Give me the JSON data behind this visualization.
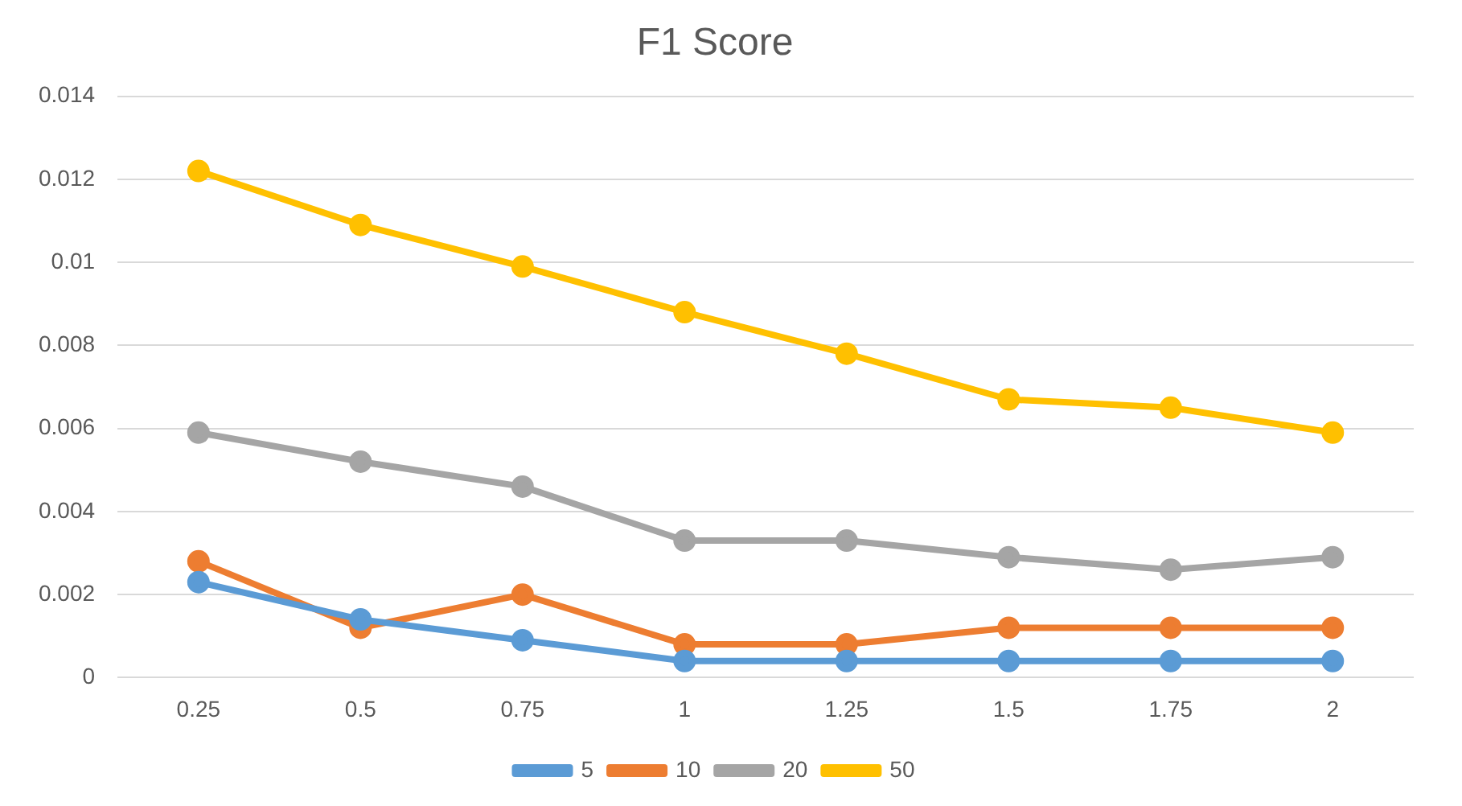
{
  "chart_data": {
    "type": "line",
    "title": "F1 Score",
    "categories": [
      "0.25",
      "0.5",
      "0.75",
      "1",
      "1.25",
      "1.5",
      "1.75",
      "2"
    ],
    "series": [
      {
        "name": "5",
        "color": "#5b9bd5",
        "values": [
          0.0023,
          0.0014,
          0.0009,
          0.0004,
          0.0004,
          0.0004,
          0.0004,
          0.0004
        ]
      },
      {
        "name": "10",
        "color": "#ed7d31",
        "values": [
          0.0028,
          0.0012,
          0.002,
          0.0008,
          0.0008,
          0.0012,
          0.0012,
          0.0012
        ]
      },
      {
        "name": "20",
        "color": "#a5a5a5",
        "values": [
          0.0059,
          0.0052,
          0.0046,
          0.0033,
          0.0033,
          0.0029,
          0.0026,
          0.0029
        ]
      },
      {
        "name": "50",
        "color": "#ffc000",
        "values": [
          0.0122,
          0.0109,
          0.0099,
          0.0088,
          0.0078,
          0.0067,
          0.0065,
          0.0059
        ]
      }
    ],
    "ylim": [
      0,
      0.014
    ],
    "yticks": [
      0,
      0.002,
      0.004,
      0.006,
      0.008,
      0.01,
      0.012,
      0.014
    ],
    "grid": "y",
    "legend": "bottom",
    "marker": "circle",
    "line_style": "solid"
  }
}
